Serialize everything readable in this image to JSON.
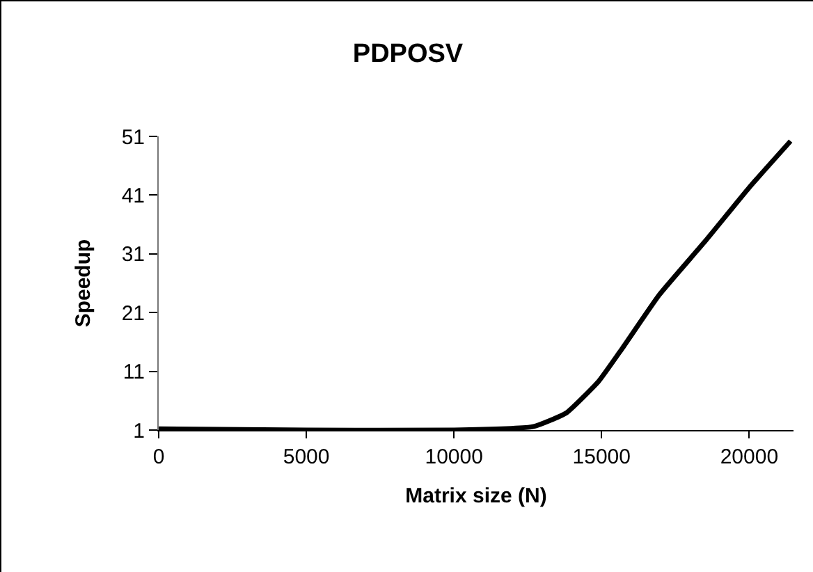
{
  "chart_data": {
    "type": "line",
    "title": "PDPOSV",
    "xlabel": "Matrix size (N)",
    "ylabel": "Speedup",
    "x": [
      0,
      5000,
      10000,
      12700,
      13800,
      14900,
      15700,
      16950,
      18500,
      20000,
      21400
    ],
    "series": [
      {
        "color": "#000000",
        "values": [
          1.2,
          1.0,
          1.0,
          1.6,
          3.9,
          9.3,
          14.9,
          24,
          33.1,
          42.3,
          50.2
        ]
      }
    ],
    "xlim": [
      0,
      21500
    ],
    "xticks": [
      0,
      5000,
      10000,
      15000,
      20000
    ],
    "ylim": [
      1,
      51
    ],
    "yticks": [
      1,
      11,
      21,
      31,
      41,
      51
    ],
    "grid": false,
    "marker": "none",
    "line_style": "solid"
  }
}
